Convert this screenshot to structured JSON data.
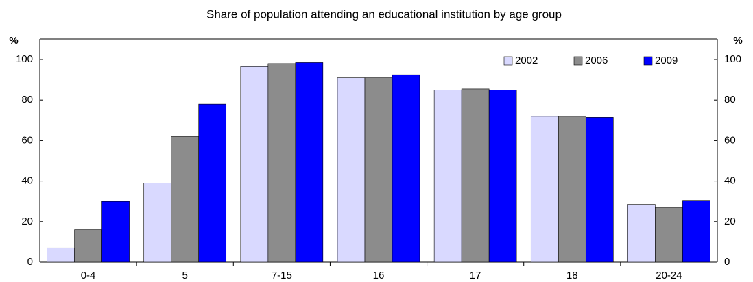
{
  "chart_data": {
    "type": "bar",
    "title": "Share of population attending an educational institution by age group",
    "y_label": "%",
    "y2_label": "%",
    "categories": [
      "0-4",
      "5",
      "7-15",
      "16",
      "17",
      "18",
      "20-24"
    ],
    "series": [
      {
        "name": "2002",
        "color": "#d9d9ff",
        "values": [
          7,
          39,
          96.5,
          91,
          85,
          72,
          28.5
        ]
      },
      {
        "name": "2006",
        "color": "#8c8c8c",
        "values": [
          16,
          62,
          98,
          91,
          85.5,
          72,
          27
        ]
      },
      {
        "name": "2009",
        "color": "#0000ff",
        "values": [
          30,
          78,
          98.5,
          92.5,
          85,
          71.5,
          30.5
        ]
      }
    ],
    "ylim": [
      0,
      100
    ],
    "yticks": [
      0,
      20,
      40,
      60,
      80,
      100
    ],
    "y2lim": [
      0,
      100
    ],
    "y2ticks": [
      0,
      20,
      40,
      60,
      80,
      100
    ],
    "grid": false,
    "legend": "upper right"
  }
}
